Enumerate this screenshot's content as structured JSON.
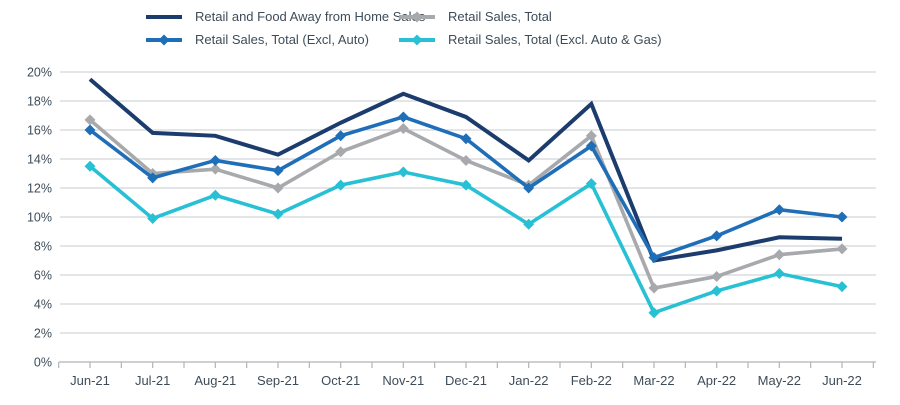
{
  "chart_data": {
    "type": "line",
    "title": "",
    "xlabel": "",
    "ylabel": "",
    "legend_position": "top",
    "grid": true,
    "ylim": [
      0,
      20
    ],
    "ytick_step": 2,
    "ytick_suffix": "%",
    "categories": [
      "Jun-21",
      "Jul-21",
      "Aug-21",
      "Sep-21",
      "Oct-21",
      "Nov-21",
      "Dec-21",
      "Jan-22",
      "Feb-22",
      "Mar-22",
      "Apr-22",
      "May-22",
      "Jun-22"
    ],
    "series": [
      {
        "name": "Retail and Food Away from Home Sales",
        "color": "#1b3c6d",
        "marker": "none",
        "line_width": 4,
        "values": [
          19.5,
          15.8,
          15.6,
          14.3,
          16.5,
          18.5,
          16.9,
          13.9,
          17.8,
          7.0,
          7.7,
          8.6,
          8.5
        ]
      },
      {
        "name": "Retail Sales, Total (Excl, Auto)",
        "color": "#1f6eb8",
        "marker": "diamond",
        "line_width": 3.6,
        "values": [
          16.0,
          12.7,
          13.9,
          13.2,
          15.6,
          16.9,
          15.4,
          12.0,
          14.9,
          7.2,
          8.7,
          10.5,
          10.0
        ]
      },
      {
        "name": "Retail Sales, Total",
        "color": "#a7a9ac",
        "marker": "diamond",
        "line_width": 3.6,
        "values": [
          16.7,
          13.0,
          13.3,
          12.0,
          14.5,
          16.1,
          13.9,
          12.2,
          15.6,
          5.1,
          5.9,
          7.4,
          7.8
        ]
      },
      {
        "name": "Retail Sales, Total (Excl. Auto & Gas)",
        "color": "#27c0d4",
        "marker": "diamond",
        "line_width": 3.6,
        "values": [
          13.5,
          9.9,
          11.5,
          10.2,
          12.2,
          13.1,
          12.2,
          9.5,
          12.3,
          3.4,
          4.9,
          6.1,
          5.2
        ]
      }
    ],
    "layout": {
      "grid_color": "#c9cbcd",
      "axis_color": "#b2b4b6",
      "tick_label_color": "#3e4c59",
      "z_order": [
        2,
        3,
        0,
        1
      ],
      "marker_radius": 5.5
    }
  }
}
